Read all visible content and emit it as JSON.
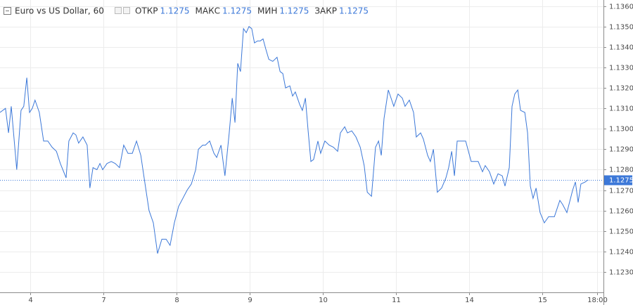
{
  "chart_data": {
    "type": "line",
    "title": "Euro vs US Dollar, 60",
    "ohlc": [
      {
        "label": "ОТКР",
        "value": "1.1275"
      },
      {
        "label": "МАКС",
        "value": "1.1275"
      },
      {
        "label": "МИН",
        "value": "1.1275"
      },
      {
        "label": "ЗАКР",
        "value": "1.1275"
      }
    ],
    "last_price": {
      "value": 1.1275,
      "label": "1.1275"
    },
    "grid": true,
    "xlim": [
      0,
      198
    ],
    "ylim": [
      1.122,
      1.1363
    ],
    "xticks": [
      {
        "value": 10,
        "label": "4"
      },
      {
        "value": 34,
        "label": "7"
      },
      {
        "value": 58,
        "label": "8"
      },
      {
        "value": 82,
        "label": "9"
      },
      {
        "value": 106,
        "label": "10"
      },
      {
        "value": 130,
        "label": "11"
      },
      {
        "value": 154,
        "label": "14"
      },
      {
        "value": 178,
        "label": "15"
      },
      {
        "value": 196,
        "label": "18:00"
      }
    ],
    "yticks": [
      {
        "value": 1.123,
        "label": "1.1230"
      },
      {
        "value": 1.124,
        "label": "1.1240"
      },
      {
        "value": 1.125,
        "label": "1.1250"
      },
      {
        "value": 1.126,
        "label": "1.1260"
      },
      {
        "value": 1.127,
        "label": "1.1270"
      },
      {
        "value": 1.128,
        "label": "1.1280"
      },
      {
        "value": 1.129,
        "label": "1.1290"
      },
      {
        "value": 1.13,
        "label": "1.1300"
      },
      {
        "value": 1.131,
        "label": "1.1310"
      },
      {
        "value": 1.132,
        "label": "1.1320"
      },
      {
        "value": 1.133,
        "label": "1.1330"
      },
      {
        "value": 1.134,
        "label": "1.1340"
      },
      {
        "value": 1.135,
        "label": "1.1350"
      },
      {
        "value": 1.136,
        "label": "1.1360"
      }
    ],
    "x": [
      0,
      1.8,
      2.8,
      3.7,
      5.5,
      6.9,
      7.8,
      8.8,
      9.7,
      10.6,
      11.5,
      12.9,
      14.3,
      15.7,
      17.1,
      18.5,
      19.8,
      21.7,
      22.6,
      24,
      24.9,
      25.8,
      27.2,
      28.6,
      29.5,
      30.5,
      31.8,
      32.8,
      33.7,
      35.1,
      36.5,
      37.8,
      39.2,
      40.6,
      42,
      43.4,
      44.8,
      46.2,
      47.5,
      48.9,
      50.3,
      51.7,
      53.1,
      54.5,
      55.8,
      57.2,
      58.6,
      60,
      61.4,
      62.8,
      64.2,
      65.1,
      66.5,
      67.4,
      68.8,
      70.2,
      71.1,
      72.5,
      73.8,
      75.2,
      76.2,
      77.1,
      78,
      78.9,
      79.9,
      80.8,
      81.7,
      82.6,
      83.5,
      84.5,
      85.4,
      86.3,
      87.2,
      88.2,
      89.5,
      90.9,
      91.9,
      92.8,
      93.7,
      95.1,
      96,
      96.9,
      98.3,
      99.2,
      100.2,
      101.1,
      102,
      102.9,
      104.3,
      105.2,
      106.6,
      108,
      109.4,
      110.8,
      111.7,
      113.1,
      114,
      115.4,
      116.8,
      118.2,
      119.5,
      120.5,
      121.9,
      123.2,
      124.2,
      125.1,
      126,
      127.4,
      128.3,
      129.2,
      130.6,
      132,
      132.9,
      134.3,
      135.7,
      136.6,
      138,
      138.9,
      140.3,
      141.2,
      142.2,
      143.5,
      144.9,
      146.3,
      147.2,
      148.2,
      149.1,
      150,
      151.4,
      152.8,
      153.7,
      154.6,
      156.9,
      158.3,
      159.2,
      160.6,
      162,
      163.4,
      164.8,
      165.7,
      167.1,
      168,
      168.9,
      169.9,
      170.8,
      172.2,
      173.1,
      174,
      174.9,
      175.9,
      177.2,
      178.6,
      180,
      180.9,
      181.9,
      182.8,
      183.7,
      184.6,
      186,
      187.9,
      188.8,
      189.7,
      190.6,
      192,
      192.9
    ],
    "series": [
      {
        "color": "#3c78d8",
        "values": [
          1.1308,
          1.131,
          1.1298,
          1.1311,
          1.128,
          1.1309,
          1.1311,
          1.1325,
          1.1308,
          1.131,
          1.1314,
          1.1308,
          1.1294,
          1.1294,
          1.1291,
          1.1289,
          1.1283,
          1.1276,
          1.1294,
          1.1298,
          1.1297,
          1.1293,
          1.1296,
          1.1292,
          1.1271,
          1.1281,
          1.128,
          1.1283,
          1.128,
          1.1283,
          1.1284,
          1.1283,
          1.1281,
          1.1292,
          1.1288,
          1.1288,
          1.1294,
          1.1287,
          1.1274,
          1.126,
          1.1254,
          1.1239,
          1.1246,
          1.1246,
          1.1243,
          1.1254,
          1.1262,
          1.1266,
          1.127,
          1.1273,
          1.128,
          1.129,
          1.1292,
          1.1292,
          1.1294,
          1.1288,
          1.1286,
          1.1292,
          1.1277,
          1.1298,
          1.1315,
          1.1303,
          1.1332,
          1.1328,
          1.1349,
          1.1347,
          1.135,
          1.1349,
          1.1342,
          1.1343,
          1.1343,
          1.1344,
          1.1339,
          1.1334,
          1.1333,
          1.1335,
          1.1328,
          1.1327,
          1.132,
          1.1321,
          1.1316,
          1.1318,
          1.1312,
          1.1309,
          1.1315,
          1.1299,
          1.1284,
          1.1285,
          1.1294,
          1.1288,
          1.1294,
          1.1292,
          1.1291,
          1.1289,
          1.1298,
          1.1301,
          1.1298,
          1.1299,
          1.1296,
          1.1291,
          1.1282,
          1.1269,
          1.1267,
          1.1291,
          1.1294,
          1.1287,
          1.1305,
          1.1319,
          1.1315,
          1.1311,
          1.1317,
          1.1315,
          1.1311,
          1.1314,
          1.1308,
          1.1296,
          1.1298,
          1.1295,
          1.1287,
          1.1284,
          1.129,
          1.1269,
          1.1271,
          1.1276,
          1.1281,
          1.1289,
          1.1277,
          1.1294,
          1.1294,
          1.1294,
          1.1289,
          1.1284,
          1.1284,
          1.1279,
          1.1282,
          1.1279,
          1.1273,
          1.1278,
          1.1277,
          1.1272,
          1.1281,
          1.1311,
          1.1317,
          1.1319,
          1.1309,
          1.1308,
          1.1298,
          1.1272,
          1.1266,
          1.1271,
          1.1259,
          1.1254,
          1.1257,
          1.1257,
          1.1257,
          1.1261,
          1.1265,
          1.1263,
          1.1259,
          1.127,
          1.1274,
          1.1264,
          1.1273,
          1.1274,
          1.1275
        ]
      }
    ]
  }
}
